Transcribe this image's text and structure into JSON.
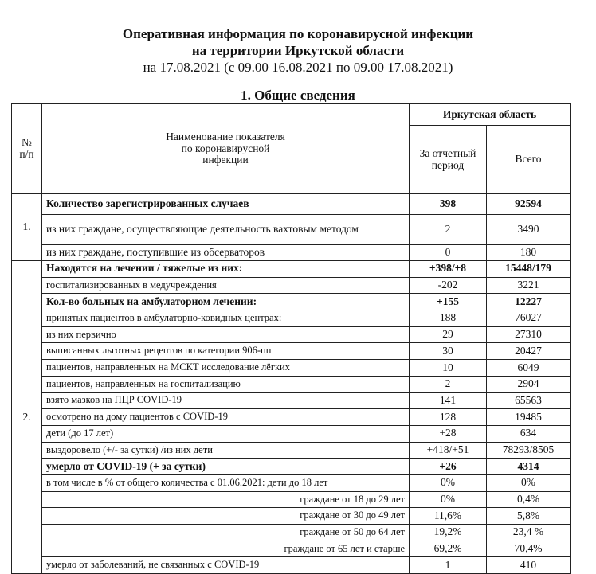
{
  "header": {
    "title_line1": "Оперативная информация по коронавирусной инфекции",
    "title_line2": "на территории Иркутской области",
    "date_line": "на 17.08.2021 (с 09.00 16.08.2021 по 09.00 17.08.2021)",
    "section_title": "1. Общие сведения"
  },
  "table": {
    "columns": {
      "number": "№ п/п",
      "name": "Наименование показателя по коронавирусной инфекции",
      "region": "Иркутская область",
      "period": "За отчетный период",
      "total": "Всего"
    },
    "sections": [
      {
        "number": "1.",
        "rows": [
          {
            "label": "Количество зарегистрированных случаев",
            "period": "398",
            "total": "92594"
          },
          {
            "label": "из них граждане, осуществляющие деятельность вахтовым методом",
            "period": "2",
            "total": "3490"
          },
          {
            "label": "из них граждане, поступившие из обсерваторов",
            "period": "0",
            "total": "180"
          }
        ]
      },
      {
        "number": "2.",
        "rows": [
          {
            "label": "Находятся на лечении / тяжелые из них:",
            "period": "+398/+8",
            "total": "15448/179"
          },
          {
            "label": "госпитализированных в медучреждения",
            "period": "-202",
            "total": "3221"
          },
          {
            "label": "Кол-во больных на амбулаторном лечении:",
            "period": "+155",
            "total": "12227"
          },
          {
            "label": "принятых пациентов в амбулаторно-ковидных центрах:",
            "period": "188",
            "total": "76027"
          },
          {
            "label": "из них первично",
            "period": "29",
            "total": "27310"
          },
          {
            "label": "выписанных льготных рецептов по категории 906-пп",
            "period": "30",
            "total": "20427"
          },
          {
            "label": "пациентов, направленных на МСКТ исследование лёгких",
            "period": "10",
            "total": "6049"
          },
          {
            "label": "пациентов, направленных на госпитализацию",
            "period": "2",
            "total": "2904"
          },
          {
            "label": "взято мазков на ПЦР COVID-19",
            "period": "141",
            "total": "65563"
          },
          {
            "label": "осмотрено на дому пациентов с COVID-19",
            "period": "128",
            "total": "19485"
          },
          {
            "label": "дети (до 17 лет)",
            "period": "+28",
            "total": "634"
          },
          {
            "label": "выздоровело (+/- за сутки) /из них дети",
            "period": "+418/+51",
            "total": "78293/8505"
          },
          {
            "label": "умерло от COVID-19 (+ за сутки)",
            "period": "+26",
            "total": "4314"
          },
          {
            "label": "в том числе в % от общего количества с 01.06.2021: дети до 18 лет",
            "period": "0%",
            "total": "0%"
          },
          {
            "label": "граждане от 18 до 29 лет",
            "period": "0%",
            "total": "0,4%"
          },
          {
            "label": "граждане от 30 до 49 лет",
            "period": "11,6%",
            "total": "5,8%"
          },
          {
            "label": "граждане от 50 до 64 лет",
            "period": "19,2%",
            "total": "23,4 %"
          },
          {
            "label": "граждане от 65 лет и старше",
            "period": "69,2%",
            "total": "70,4%"
          },
          {
            "label": "умерло от заболеваний, не связанных с COVID-19",
            "period": "1",
            "total": "410"
          }
        ]
      }
    ]
  }
}
